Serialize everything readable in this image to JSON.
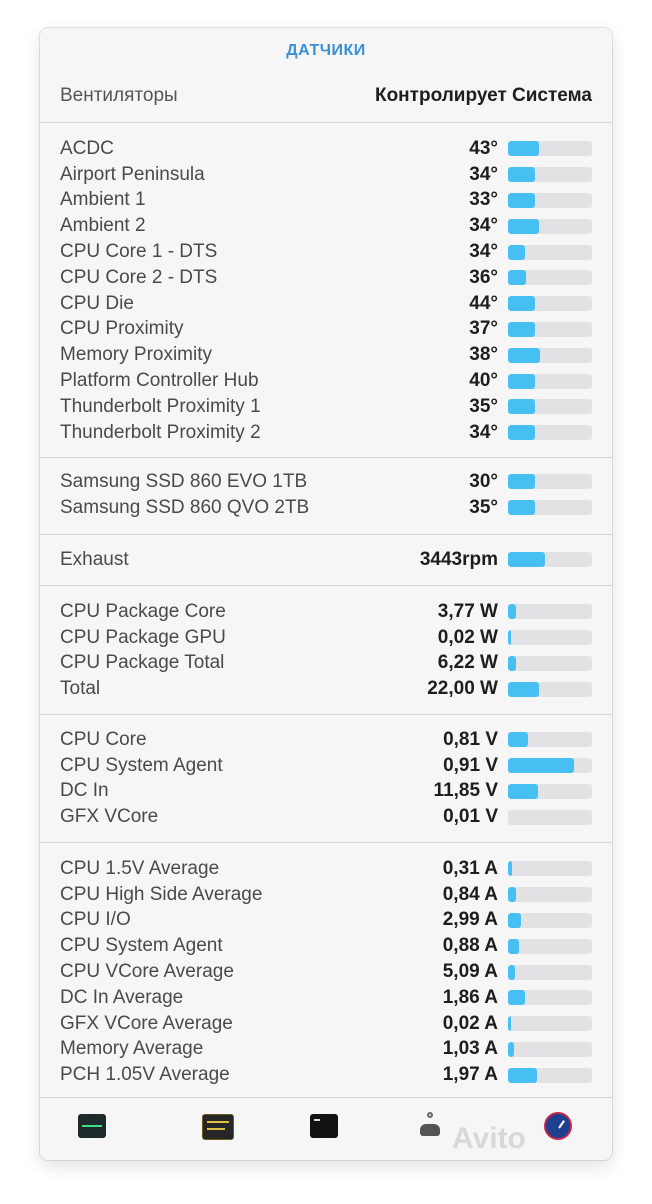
{
  "header": {
    "title": "ДАТЧИКИ"
  },
  "fans": {
    "label": "Вентиляторы",
    "mode": "Контролирует Система"
  },
  "groups": [
    {
      "rows": [
        {
          "name": "ACDC",
          "value": "43°",
          "level": 0.37
        },
        {
          "name": "Airport Peninsula",
          "value": "34°",
          "level": 0.32
        },
        {
          "name": "Ambient 1",
          "value": "33°",
          "level": 0.32
        },
        {
          "name": "Ambient 2",
          "value": "34°",
          "level": 0.37
        },
        {
          "name": "CPU Core 1 - DTS",
          "value": "34°",
          "level": 0.2
        },
        {
          "name": "CPU Core 2 - DTS",
          "value": "36°",
          "level": 0.22
        },
        {
          "name": "CPU Die",
          "value": "44°",
          "level": 0.32
        },
        {
          "name": "CPU Proximity",
          "value": "37°",
          "level": 0.32
        },
        {
          "name": "Memory Proximity",
          "value": "38°",
          "level": 0.38
        },
        {
          "name": "Platform Controller Hub",
          "value": "40°",
          "level": 0.32
        },
        {
          "name": "Thunderbolt Proximity 1",
          "value": "35°",
          "level": 0.32
        },
        {
          "name": "Thunderbolt Proximity 2",
          "value": "34°",
          "level": 0.32
        }
      ]
    },
    {
      "rows": [
        {
          "name": "Samsung SSD 860 EVO 1TB",
          "value": "30°",
          "level": 0.32
        },
        {
          "name": "Samsung SSD 860 QVO 2TB",
          "value": "35°",
          "level": 0.32
        }
      ]
    },
    {
      "rows": [
        {
          "name": "Exhaust",
          "value": "3443rpm",
          "level": 0.44
        }
      ]
    },
    {
      "rows": [
        {
          "name": "CPU Package Core",
          "value": "3,77 W",
          "level": 0.09
        },
        {
          "name": "CPU Package GPU",
          "value": "0,02 W",
          "level": 0.02
        },
        {
          "name": "CPU Package Total",
          "value": "6,22 W",
          "level": 0.09
        },
        {
          "name": "Total",
          "value": "22,00 W",
          "level": 0.37
        }
      ]
    },
    {
      "rows": [
        {
          "name": "CPU Core",
          "value": "0,81 V",
          "level": 0.24
        },
        {
          "name": "CPU System Agent",
          "value": "0,91 V",
          "level": 0.78
        },
        {
          "name": "DC In",
          "value": "11,85 V",
          "level": 0.36
        },
        {
          "name": "GFX VCore",
          "value": "0,01 V",
          "level": 0.0
        }
      ]
    },
    {
      "rows": [
        {
          "name": "CPU 1.5V Average",
          "value": "0,31 A",
          "level": 0.05
        },
        {
          "name": "CPU High Side Average",
          "value": "0,84 A",
          "level": 0.09
        },
        {
          "name": "CPU I/O",
          "value": "2,99 A",
          "level": 0.15
        },
        {
          "name": "CPU System Agent",
          "value": "0,88 A",
          "level": 0.13
        },
        {
          "name": "CPU VCore Average",
          "value": "5,09 A",
          "level": 0.08
        },
        {
          "name": "DC In Average",
          "value": "1,86 A",
          "level": 0.2
        },
        {
          "name": "GFX VCore Average",
          "value": "0,02 A",
          "level": 0.02
        },
        {
          "name": "Memory Average",
          "value": "1,03 A",
          "level": 0.07
        },
        {
          "name": "PCH 1.05V Average",
          "value": "1,97 A",
          "level": 0.35
        }
      ]
    }
  ],
  "footer": {
    "icons": [
      "activity-monitor-icon",
      "console-icon",
      "terminal-icon",
      "system-information-icon",
      "disk-utility-icon"
    ]
  },
  "watermark": "Avito",
  "colors": {
    "bar_fill": "#46c0f3",
    "bar_track": "#e2e2e4",
    "title": "#3a8fd6"
  }
}
